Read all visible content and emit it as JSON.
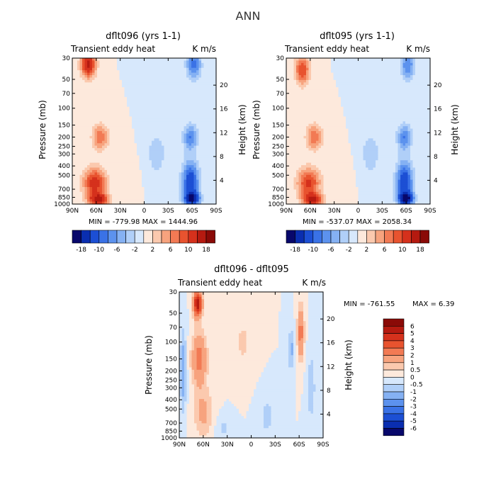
{
  "page": {
    "title": "ANN"
  },
  "chart_data": [
    {
      "id": "panel-a",
      "type": "contour",
      "title": "dflt096 (yrs 1-1)",
      "subtitle_left": "Transient eddy heat",
      "subtitle_right": "K m/s",
      "xlabel": "",
      "ylabel": "Pressure (mb)",
      "ylabel_right": "Height (km)",
      "x_ticks": [
        "90N",
        "60N",
        "30N",
        "0",
        "30S",
        "60S",
        "90S"
      ],
      "x_tick_values": [
        90,
        60,
        30,
        0,
        -30,
        -60,
        -90
      ],
      "y_ticks": [
        "30",
        "50",
        "70",
        "100",
        "150",
        "200",
        "250",
        "300",
        "400",
        "500",
        "700",
        "850",
        "1000"
      ],
      "y_tick_values": [
        30,
        50,
        70,
        100,
        150,
        200,
        250,
        300,
        400,
        500,
        700,
        850,
        1000
      ],
      "height_ticks": [
        "4",
        "8",
        "12",
        "16",
        "20"
      ],
      "height_tick_values": [
        4,
        8,
        12,
        16,
        20
      ],
      "minmax": "MIN = -779.98   MAX = 1444.96",
      "colorbar_labels": [
        "-18",
        "-10",
        "-6",
        "-2",
        "2",
        "6",
        "10",
        "18"
      ],
      "colorbar_colors": [
        "#08086b",
        "#0a2eb0",
        "#1c4fd4",
        "#3a72e6",
        "#5c92ee",
        "#85b1f3",
        "#b0cff8",
        "#d7e8fc",
        "#fde9dc",
        "#fbc9ae",
        "#f7a37e",
        "#f27a54",
        "#e8532f",
        "#d5311c",
        "#b51a10",
        "#8a0a07"
      ],
      "levels": [
        -22,
        -18,
        -14,
        -10,
        -8,
        -6,
        -4,
        -2,
        0,
        2,
        4,
        6,
        8,
        10,
        14,
        18,
        22
      ],
      "features": [
        {
          "lat": 62,
          "p": 600,
          "amp": 12,
          "slat": 14,
          "sp": 0.35
        },
        {
          "lat": 57,
          "p": 900,
          "amp": 14,
          "slat": 12,
          "sp": 0.15
        },
        {
          "lat": 70,
          "p": 35,
          "amp": 15,
          "slat": 9,
          "sp": 0.3
        },
        {
          "lat": 55,
          "p": 200,
          "amp": 8,
          "slat": 10,
          "sp": 0.3
        },
        {
          "lat": -58,
          "p": 600,
          "amp": -13,
          "slat": 10,
          "sp": 0.5
        },
        {
          "lat": -60,
          "p": 880,
          "amp": -14,
          "slat": 9,
          "sp": 0.15
        },
        {
          "lat": -58,
          "p": 200,
          "amp": -8,
          "slat": 9,
          "sp": 0.3
        },
        {
          "lat": -62,
          "p": 35,
          "amp": -9,
          "slat": 9,
          "sp": 0.35
        },
        {
          "lat": -15,
          "p": 300,
          "amp": -2.5,
          "slat": 20,
          "sp": 0.8
        },
        {
          "lat": 15,
          "p": 500,
          "amp": 1.2,
          "slat": 15,
          "sp": 0.8
        }
      ]
    },
    {
      "id": "panel-b",
      "type": "contour",
      "title": "dflt095 (yrs 1-1)",
      "subtitle_left": "Transient eddy heat",
      "subtitle_right": "K m/s",
      "xlabel": "",
      "ylabel": "Pressure (mb)",
      "ylabel_right": "Height (km)",
      "x_ticks": [
        "90N",
        "60N",
        "30N",
        "0",
        "30S",
        "60S",
        "90S"
      ],
      "x_tick_values": [
        90,
        60,
        30,
        0,
        -30,
        -60,
        -90
      ],
      "y_ticks": [
        "30",
        "50",
        "70",
        "100",
        "150",
        "200",
        "250",
        "300",
        "400",
        "500",
        "700",
        "850",
        "1000"
      ],
      "y_tick_values": [
        30,
        50,
        70,
        100,
        150,
        200,
        250,
        300,
        400,
        500,
        700,
        850,
        1000
      ],
      "height_ticks": [
        "4",
        "8",
        "12",
        "16",
        "20"
      ],
      "height_tick_values": [
        4,
        8,
        12,
        16,
        20
      ],
      "minmax": "MIN = -537.07   MAX = 2058.34",
      "colorbar_labels": [
        "-18",
        "-10",
        "-6",
        "-2",
        "2",
        "6",
        "10",
        "18"
      ],
      "colorbar_colors": [
        "#08086b",
        "#0a2eb0",
        "#1c4fd4",
        "#3a72e6",
        "#5c92ee",
        "#85b1f3",
        "#b0cff8",
        "#d7e8fc",
        "#fde9dc",
        "#fbc9ae",
        "#f7a37e",
        "#f27a54",
        "#e8532f",
        "#d5311c",
        "#b51a10",
        "#8a0a07"
      ],
      "levels": [
        -22,
        -18,
        -14,
        -10,
        -8,
        -6,
        -4,
        -2,
        0,
        2,
        4,
        6,
        8,
        10,
        14,
        18,
        22
      ],
      "features": [
        {
          "lat": 62,
          "p": 600,
          "amp": 11,
          "slat": 14,
          "sp": 0.35
        },
        {
          "lat": 57,
          "p": 900,
          "amp": 13,
          "slat": 12,
          "sp": 0.15
        },
        {
          "lat": 70,
          "p": 40,
          "amp": 10,
          "slat": 9,
          "sp": 0.35
        },
        {
          "lat": 55,
          "p": 200,
          "amp": 8,
          "slat": 10,
          "sp": 0.3
        },
        {
          "lat": -58,
          "p": 600,
          "amp": -13,
          "slat": 10,
          "sp": 0.5
        },
        {
          "lat": -60,
          "p": 880,
          "amp": -15,
          "slat": 9,
          "sp": 0.15
        },
        {
          "lat": -58,
          "p": 200,
          "amp": -8,
          "slat": 9,
          "sp": 0.3
        },
        {
          "lat": -62,
          "p": 35,
          "amp": -8,
          "slat": 9,
          "sp": 0.35
        },
        {
          "lat": -15,
          "p": 300,
          "amp": -2.5,
          "slat": 20,
          "sp": 0.8
        },
        {
          "lat": 15,
          "p": 500,
          "amp": 1.2,
          "slat": 15,
          "sp": 0.8
        }
      ]
    },
    {
      "id": "panel-c",
      "type": "contour",
      "title": "dflt096 - dflt095",
      "subtitle_left": "Transient eddy heat",
      "subtitle_right": "K m/s",
      "xlabel": "",
      "ylabel": "Pressure (mb)",
      "ylabel_right": "Height (km)",
      "x_ticks": [
        "90N",
        "60N",
        "30N",
        "0",
        "30S",
        "60S",
        "90S"
      ],
      "x_tick_values": [
        90,
        60,
        30,
        0,
        -30,
        -60,
        -90
      ],
      "y_ticks": [
        "30",
        "50",
        "70",
        "100",
        "150",
        "200",
        "250",
        "300",
        "400",
        "500",
        "700",
        "850",
        "1000"
      ],
      "y_tick_values": [
        30,
        50,
        70,
        100,
        150,
        200,
        250,
        300,
        400,
        500,
        700,
        850,
        1000
      ],
      "height_ticks": [
        "4",
        "8",
        "12",
        "16",
        "20"
      ],
      "height_tick_values": [
        4,
        8,
        12,
        16,
        20
      ],
      "minmax_min": "MIN = -761.55",
      "minmax_max": "MAX =    6.39",
      "colorbar_labels": [
        "6",
        "5",
        "4",
        "3",
        "2",
        "1",
        "0.5",
        "0",
        "-0.5",
        "-1",
        "-2",
        "-3",
        "-4",
        "-5",
        "-6"
      ],
      "colorbar_colors": [
        "#8a0a07",
        "#b51a10",
        "#d5311c",
        "#e8532f",
        "#f27a54",
        "#f7a37e",
        "#fbc9ae",
        "#fde9dc",
        "#d7e8fc",
        "#b0cff8",
        "#85b1f3",
        "#5c92ee",
        "#3a72e6",
        "#1c4fd4",
        "#0a2eb0",
        "#08086b"
      ],
      "levels": [
        -7,
        -6,
        -5,
        -4,
        -3,
        -2,
        -1,
        -0.5,
        0,
        0.5,
        1,
        2,
        3,
        4,
        5,
        6,
        7
      ],
      "features": [
        {
          "lat": 67,
          "p": 40,
          "amp": 6,
          "slat": 5,
          "sp": 0.3
        },
        {
          "lat": 65,
          "p": 150,
          "amp": 2.5,
          "slat": 9,
          "sp": 0.6
        },
        {
          "lat": 60,
          "p": 550,
          "amp": 1.2,
          "slat": 12,
          "sp": 0.6
        },
        {
          "lat": 85,
          "p": 200,
          "amp": -1.5,
          "slat": 4,
          "sp": 1.0
        },
        {
          "lat": -62,
          "p": 80,
          "amp": 2.5,
          "slat": 4,
          "sp": 0.6
        },
        {
          "lat": -50,
          "p": 120,
          "amp": -1.2,
          "slat": 4,
          "sp": 0.5
        },
        {
          "lat": -75,
          "p": 300,
          "amp": -1.0,
          "slat": 5,
          "sp": 0.8
        },
        {
          "lat": 10,
          "p": 100,
          "amp": 0.6,
          "slat": 12,
          "sp": 0.7
        },
        {
          "lat": -20,
          "p": 600,
          "amp": -0.7,
          "slat": 10,
          "sp": 0.5
        },
        {
          "lat": 35,
          "p": 800,
          "amp": -0.6,
          "slat": 10,
          "sp": 0.3
        }
      ]
    }
  ]
}
